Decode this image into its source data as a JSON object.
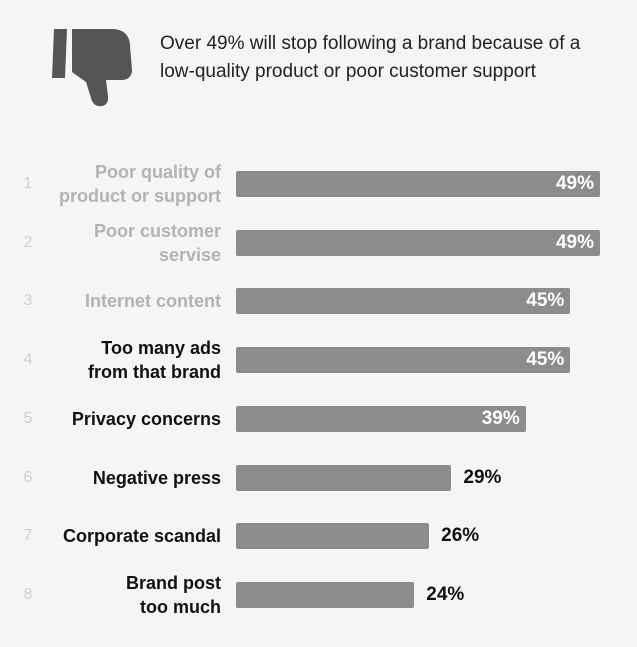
{
  "chart_data": {
    "type": "bar",
    "title": "Over 49% will stop following a brand because of a low-quality product or poor customer support",
    "ranks": [
      1,
      2,
      3,
      4,
      5,
      6,
      7,
      8
    ],
    "categories": [
      "Poor quality of\nproduct or support",
      "Poor customer\nservise",
      "Internet content",
      "Too many ads\nfrom that brand",
      "Privacy concerns",
      "Negative press",
      "Corporate scandal",
      "Brand post\ntoo much"
    ],
    "label_colors": [
      "#b3b3b3",
      "#b3b3b3",
      "#b3b3b3",
      "#111111",
      "#111111",
      "#111111",
      "#111111",
      "#111111"
    ],
    "values": [
      49,
      49,
      45,
      45,
      39,
      29,
      26,
      24
    ],
    "value_labels": [
      "49%",
      "49%",
      "45%",
      "45%",
      "39%",
      "29%",
      "26%",
      "24%"
    ],
    "color": "#8c8c8c"
  }
}
